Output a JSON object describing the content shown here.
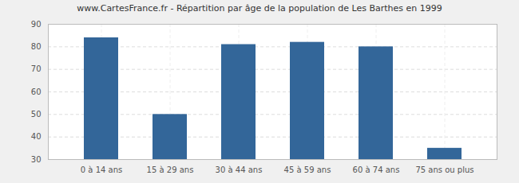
{
  "chart_data": {
    "type": "bar",
    "title": "www.CartesFrance.fr - Répartition par âge de la population de Les Barthes en 1999",
    "categories": [
      "0 à 14 ans",
      "15 à 29 ans",
      "30 à 44 ans",
      "45 à 59 ans",
      "60 à 74 ans",
      "75 ans ou plus"
    ],
    "values": [
      84,
      50,
      81,
      82,
      80,
      35
    ],
    "color": "#336699",
    "ylim": [
      30,
      90
    ],
    "yticks": [
      30,
      40,
      50,
      60,
      70,
      80,
      90
    ],
    "grid": true
  }
}
